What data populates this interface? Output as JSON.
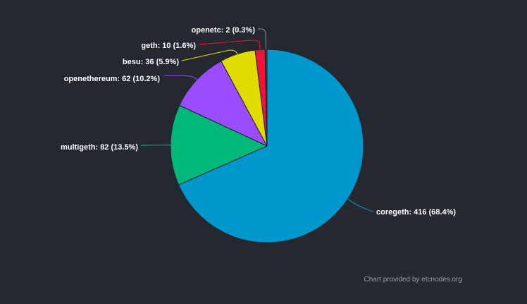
{
  "chart_data": {
    "type": "pie",
    "title": "",
    "start_angle_deg": 0,
    "slices": [
      {
        "name": "coregeth",
        "value": 416,
        "percent": 68.4,
        "label": "coregeth: 416 (68.4%)",
        "color": "#0097cc"
      },
      {
        "name": "multigeth",
        "value": 82,
        "percent": 13.5,
        "label": "multigeth: 82 (13.5%)",
        "color": "#00b87a"
      },
      {
        "name": "openethereum",
        "value": 62,
        "percent": 10.2,
        "label": "openethereum: 62 (10.2%)",
        "color": "#9a4dff"
      },
      {
        "name": "besu",
        "value": 36,
        "percent": 5.9,
        "label": "besu: 36 (5.9%)",
        "color": "#e0dc00"
      },
      {
        "name": "geth",
        "value": 10,
        "percent": 1.6,
        "label": "geth: 10 (1.6%)",
        "color": "#f0133a"
      },
      {
        "name": "openetc",
        "value": 2,
        "percent": 0.3,
        "label": "openetc: 2 (0.3%)",
        "color": "#3a3c4a"
      }
    ],
    "credit": "Chart provided by etcnodes.org"
  }
}
